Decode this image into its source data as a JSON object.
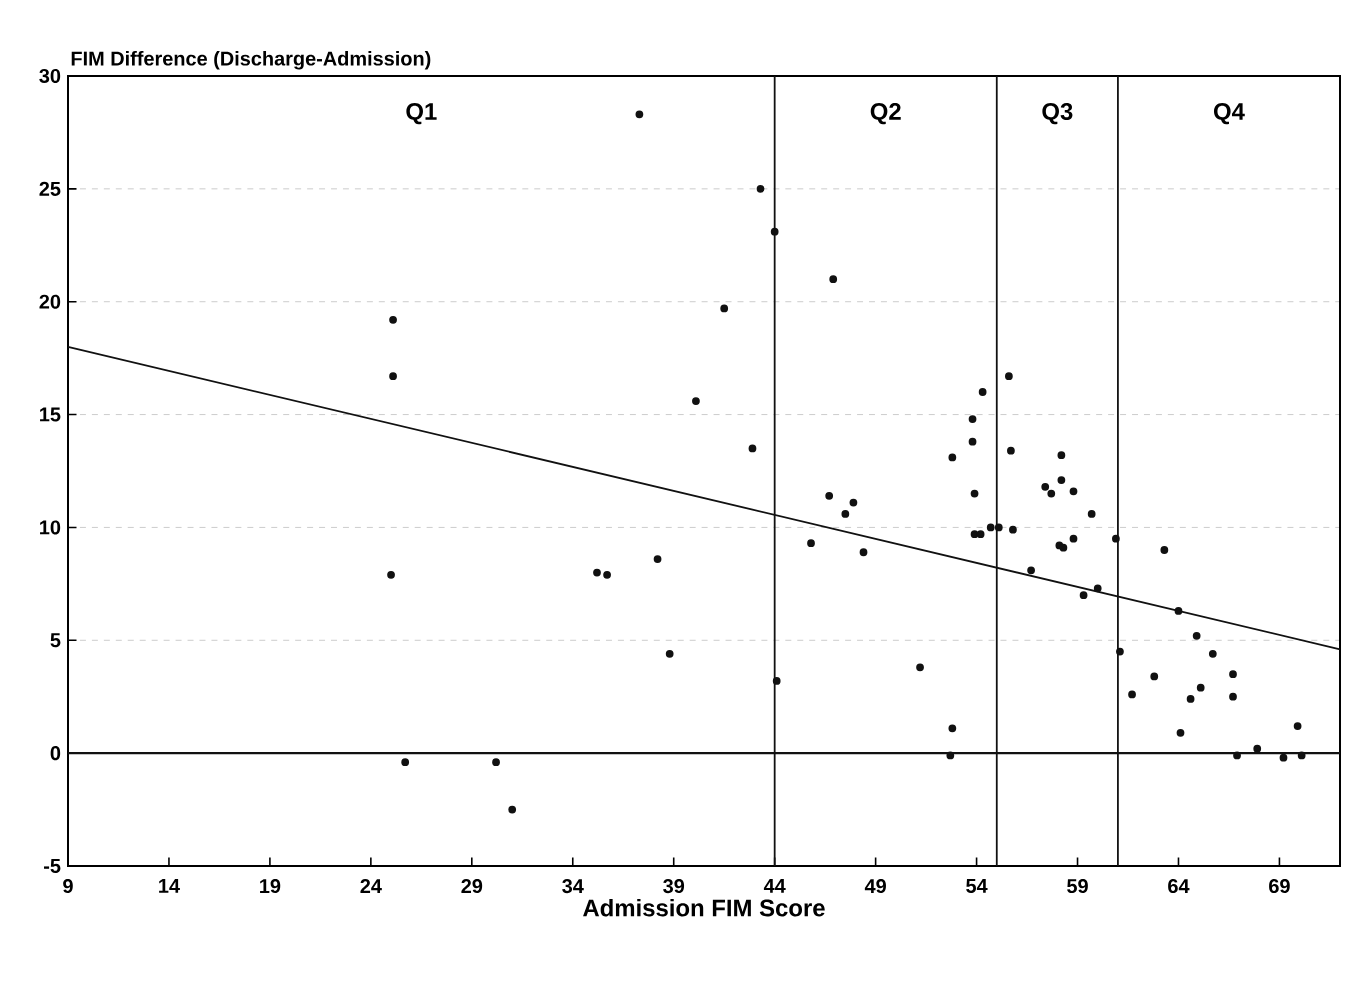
{
  "chart_data": {
    "type": "scatter",
    "xlabel": "Admission FIM Score",
    "ylabel": "FIM Difference (Discharge-Admission)",
    "xlim": [
      9,
      72
    ],
    "ylim": [
      -5,
      30
    ],
    "xticks": [
      9,
      14,
      19,
      24,
      29,
      34,
      39,
      44,
      49,
      54,
      59,
      64,
      69
    ],
    "yticks": [
      -5,
      0,
      5,
      10,
      15,
      20,
      25,
      30
    ],
    "grid": "y",
    "marker": "circle",
    "series": [
      {
        "color": "#111111",
        "x": [
          25.1,
          25.1,
          25,
          25.7,
          30.2,
          31,
          35.2,
          35.7,
          38.2,
          38.8,
          37.3,
          40.1,
          41.5,
          42.9,
          43.3,
          44,
          44.1,
          46.9,
          46.7,
          47.5,
          47.9,
          45.8,
          48.4,
          51.2,
          52.8,
          52.7,
          52.8,
          53.8,
          53.8,
          53.9,
          53.9,
          54.3,
          54.2,
          54.7,
          55.1,
          55.6,
          55.8,
          55.7,
          56.7,
          57.4,
          57.7,
          58.2,
          58.2,
          58.1,
          58.3,
          58.8,
          58.8,
          59.7,
          59.3,
          60,
          60.9,
          61.1,
          61.7,
          63.3,
          62.8,
          64,
          64.9,
          65.7,
          65.1,
          64.6,
          64.1,
          66.7,
          66.7,
          66.9,
          67.9,
          69.2,
          69.9,
          70.1
        ],
        "values": [
          19.2,
          16.7,
          7.9,
          -0.4,
          -0.4,
          -2.5,
          8.0,
          7.9,
          8.6,
          4.4,
          28.3,
          15.6,
          19.7,
          13.5,
          25.0,
          23.1,
          3.2,
          21.0,
          11.4,
          10.6,
          11.1,
          9.3,
          8.9,
          3.8,
          1.1,
          -0.1,
          13.1,
          14.8,
          13.8,
          11.5,
          9.7,
          16.0,
          9.7,
          10.0,
          10.0,
          16.7,
          9.9,
          13.4,
          8.1,
          11.8,
          11.5,
          12.1,
          13.2,
          9.2,
          9.1,
          11.6,
          9.5,
          10.6,
          7.0,
          7.3,
          9.5,
          4.5,
          2.6,
          9.0,
          3.4,
          6.3,
          5.2,
          4.4,
          2.9,
          2.4,
          0.9,
          3.5,
          2.5,
          -0.1,
          0.2,
          -0.2,
          1.2,
          -0.1
        ]
      },
      {
        "type": "line",
        "color": "#111111",
        "marker": "none",
        "x": [
          9,
          72
        ],
        "values": [
          18,
          4.6
        ]
      }
    ],
    "ref_lines": [
      {
        "axis": "y",
        "value": 0,
        "color": "#111111"
      },
      {
        "axis": "x",
        "value": 44,
        "color": "#111111"
      },
      {
        "axis": "x",
        "value": 55,
        "color": "#111111"
      },
      {
        "axis": "x",
        "value": 61,
        "color": "#111111"
      }
    ],
    "annotations": [
      "Q1",
      "Q2",
      "Q3",
      "Q4"
    ]
  }
}
